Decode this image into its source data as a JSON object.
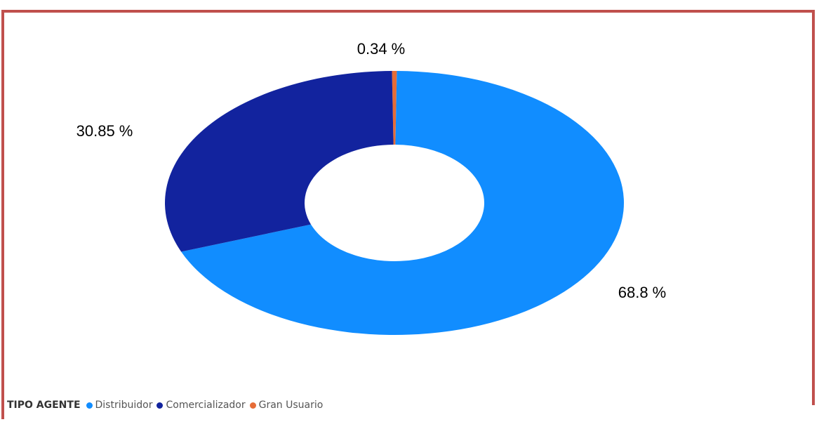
{
  "chart_data": {
    "type": "pie",
    "style": "donut",
    "legend_title": "TIPO AGENTE",
    "legend_position": "bottom-left",
    "slices": [
      {
        "name": "Distribuidor",
        "value": 68.8,
        "label": "68.8 %",
        "color": "#118dff"
      },
      {
        "name": "Comercializador",
        "value": 30.85,
        "label": "30.85 %",
        "color": "#12239e"
      },
      {
        "name": "Gran Usuario",
        "value": 0.34,
        "label": "0.34 %",
        "color": "#e66c37"
      }
    ]
  }
}
